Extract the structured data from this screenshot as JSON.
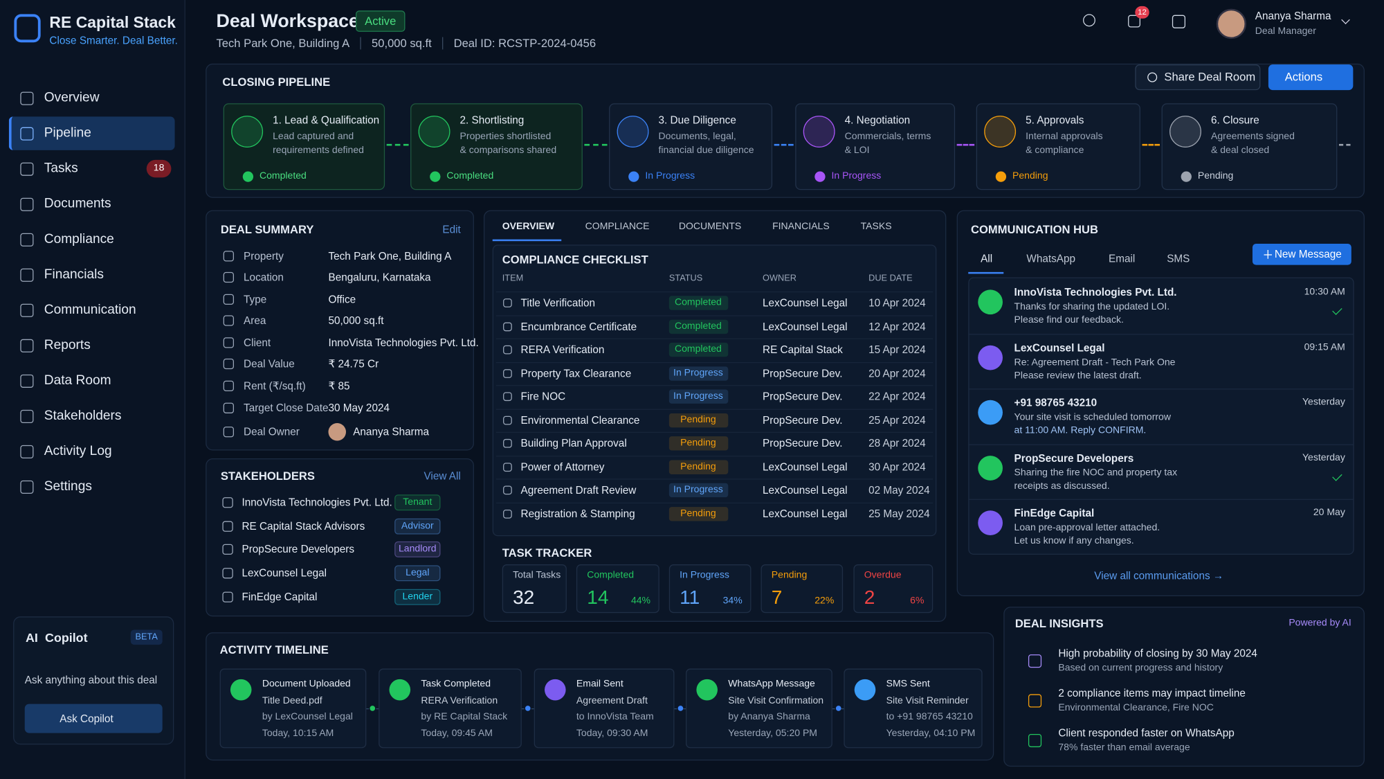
{
  "brand": {
    "name": "RE Capital Stack",
    "tagline": "Close Smarter. Deal Better."
  },
  "nav": [
    {
      "label": "Overview"
    },
    {
      "label": "Pipeline"
    },
    {
      "label": "Tasks",
      "badge": "18"
    },
    {
      "label": "Documents"
    },
    {
      "label": "Compliance"
    },
    {
      "label": "Financials"
    },
    {
      "label": "Communication"
    },
    {
      "label": "Reports"
    },
    {
      "label": "Data Room"
    },
    {
      "label": "Stakeholders"
    },
    {
      "label": "Activity Log"
    },
    {
      "label": "Settings"
    }
  ],
  "copilot": {
    "icon": "AI",
    "title": "Copilot",
    "badge": "BETA",
    "prompt": "Ask anything about this deal",
    "button": "Ask Copilot"
  },
  "header": {
    "title": "Deal Workspace",
    "status": "Active",
    "meta": [
      "Tech Park One, Building A",
      "50,000 sq.ft",
      "Deal ID: RCSTP-2024-0456"
    ],
    "notifications": "12",
    "user": "Ananya Sharma",
    "role": "Deal Manager",
    "share": "Share Deal Room",
    "actions": "Actions"
  },
  "pipeline": {
    "title": "CLOSING PIPELINE",
    "stages": [
      {
        "title": "1. Lead & Qualification",
        "desc": [
          "Lead captured and",
          "requirements defined"
        ],
        "status": "Completed",
        "color": "#22c55e"
      },
      {
        "title": "2. Shortlisting",
        "desc": [
          "Properties shortlisted",
          "& comparisons shared"
        ],
        "status": "Completed",
        "color": "#22c55e"
      },
      {
        "title": "3. Due Diligence",
        "desc": [
          "Documents, legal,",
          "financial due diligence"
        ],
        "status": "In Progress",
        "color": "#3b82f6"
      },
      {
        "title": "4. Negotiation",
        "desc": [
          "Commercials, terms",
          "& LOI"
        ],
        "status": "In Progress",
        "color": "#a855f7"
      },
      {
        "title": "5. Approvals",
        "desc": [
          "Internal approvals",
          "& compliance"
        ],
        "status": "Pending",
        "color": "#f59e0b"
      },
      {
        "title": "6. Closure",
        "desc": [
          "Agreements signed",
          "& deal closed"
        ],
        "status": "Pending",
        "color": "#9ca3af"
      }
    ]
  },
  "deal_summary": {
    "title": "DEAL SUMMARY",
    "edit": "Edit",
    "rows": [
      [
        "Property",
        "Tech Park One, Building A"
      ],
      [
        "Location",
        "Bengaluru, Karnataka"
      ],
      [
        "Type",
        "Office"
      ],
      [
        "Area",
        "50,000 sq.ft"
      ],
      [
        "Client",
        "InnoVista Technologies Pvt. Ltd."
      ],
      [
        "Deal Value",
        "₹ 24.75 Cr"
      ],
      [
        "Rent (₹/sq.ft)",
        "₹ 85"
      ],
      [
        "Target Close Date",
        "30 May 2024"
      ],
      [
        "Deal Owner",
        "Ananya Sharma"
      ]
    ]
  },
  "stakeholders": {
    "title": "STAKEHOLDERS",
    "view_all": "View All",
    "rows": [
      {
        "name": "InnoVista Technologies Pvt. Ltd.",
        "role": "Tenant",
        "color": "#22c55e"
      },
      {
        "name": "RE Capital Stack Advisors",
        "role": "Advisor",
        "color": "#60a5fa"
      },
      {
        "name": "PropSecure Developers",
        "role": "Landlord",
        "color": "#a78bfa"
      },
      {
        "name": "LexCounsel Legal",
        "role": "Legal",
        "color": "#60a5fa"
      },
      {
        "name": "FinEdge Capital",
        "role": "Lender",
        "color": "#22d3ee"
      }
    ]
  },
  "tabs": [
    "OVERVIEW",
    "COMPLIANCE",
    "DOCUMENTS",
    "FINANCIALS",
    "TASKS"
  ],
  "status_colors": {
    "Completed": "#22c55e",
    "In Progress": "#60a5fa",
    "Pending": "#f59e0b"
  },
  "compliance": {
    "title": "COMPLIANCE CHECKLIST",
    "columns": [
      "ITEM",
      "STATUS",
      "OWNER",
      "DUE DATE"
    ],
    "rows": [
      [
        "Title Verification",
        "Completed",
        "LexCounsel Legal",
        "10 Apr 2024"
      ],
      [
        "Encumbrance Certificate",
        "Completed",
        "LexCounsel Legal",
        "12 Apr 2024"
      ],
      [
        "RERA Verification",
        "Completed",
        "RE Capital Stack",
        "15 Apr 2024"
      ],
      [
        "Property Tax Clearance",
        "In Progress",
        "PropSecure Dev.",
        "20 Apr 2024"
      ],
      [
        "Fire NOC",
        "In Progress",
        "PropSecure Dev.",
        "22 Apr 2024"
      ],
      [
        "Environmental Clearance",
        "Pending",
        "PropSecure Dev.",
        "25 Apr 2024"
      ],
      [
        "Building Plan Approval",
        "Pending",
        "PropSecure Dev.",
        "28 Apr 2024"
      ],
      [
        "Power of Attorney",
        "Pending",
        "LexCounsel Legal",
        "30 Apr 2024"
      ],
      [
        "Agreement Draft Review",
        "In Progress",
        "LexCounsel Legal",
        "02 May 2024"
      ],
      [
        "Registration & Stamping",
        "Pending",
        "LexCounsel Legal",
        "25 May 2024"
      ]
    ]
  },
  "task_tracker": {
    "title": "TASK TRACKER",
    "cards": [
      {
        "label": "Total Tasks",
        "value": "32",
        "color": "#9aa6b8"
      },
      {
        "label": "Completed",
        "value": "14",
        "pct": "44%",
        "color": "#22c55e"
      },
      {
        "label": "In Progress",
        "value": "11",
        "pct": "34%",
        "color": "#60a5fa"
      },
      {
        "label": "Pending",
        "value": "7",
        "pct": "22%",
        "color": "#f59e0b"
      },
      {
        "label": "Overdue",
        "value": "2",
        "pct": "6%",
        "color": "#ef4444"
      }
    ]
  },
  "comms": {
    "title": "COMMUNICATION HUB",
    "tabs": [
      "All",
      "WhatsApp",
      "Email",
      "SMS"
    ],
    "new_message": "New Message",
    "messages": [
      {
        "from": "InnoVista Technologies Pvt. Ltd.",
        "lines": [
          "Thanks for sharing the updated LOI.",
          "Please find our feedback."
        ],
        "time": "10:30 AM",
        "color": "#22c55e",
        "read": true
      },
      {
        "from": "LexCounsel Legal",
        "lines": [
          "Re: Agreement Draft - Tech Park One",
          "Please review the latest draft."
        ],
        "time": "09:15 AM",
        "color": "#7c5cf0",
        "read": false
      },
      {
        "from": "+91 98765 43210",
        "lines": [
          "Your site visit is scheduled tomorrow",
          "at 11:00 AM. Reply CONFIRM."
        ],
        "time": "Yesterday",
        "color": "#3b9cf6",
        "read": false
      },
      {
        "from": "PropSecure Developers",
        "lines": [
          "Sharing the fire NOC and property tax",
          "receipts as discussed."
        ],
        "time": "Yesterday",
        "color": "#22c55e",
        "read": true
      },
      {
        "from": "FinEdge Capital",
        "lines": [
          "Loan pre-approval letter attached.",
          "Let us know if any changes."
        ],
        "time": "20 May",
        "color": "#7c5cf0",
        "read": false
      }
    ],
    "view_all": "View all communications →"
  },
  "insights": {
    "title": "DEAL INSIGHTS",
    "powered": "Powered by AI",
    "items": [
      {
        "title": "High probability of closing by 30 May 2024",
        "sub": "Based on current progress and history",
        "color": "#a78bfa"
      },
      {
        "title": "2 compliance items may impact timeline",
        "sub": "Environmental Clearance, Fire NOC",
        "color": "#f59e0b"
      },
      {
        "title": "Client responded faster on WhatsApp",
        "sub": "78% faster than email average",
        "color": "#22c55e"
      }
    ]
  },
  "timeline": {
    "title": "ACTIVITY TIMELINE",
    "events": [
      {
        "lines": [
          "Document Uploaded",
          "Title Deed.pdf",
          "by LexCounsel Legal",
          "Today, 10:15 AM"
        ],
        "color": "#22c55e"
      },
      {
        "lines": [
          "Task Completed",
          "RERA Verification",
          "by RE Capital Stack",
          "Today, 09:45 AM"
        ],
        "color": "#22c55e"
      },
      {
        "lines": [
          "Email Sent",
          "Agreement Draft",
          "to InnoVista Team",
          "Today, 09:30 AM"
        ],
        "color": "#7c5cf0"
      },
      {
        "lines": [
          "WhatsApp Message",
          "Site Visit Confirmation",
          "by Ananya Sharma",
          "Yesterday, 05:20 PM"
        ],
        "color": "#22c55e"
      },
      {
        "lines": [
          "SMS Sent",
          "Site Visit Reminder",
          "to +91 98765 43210",
          "Yesterday, 04:10 PM"
        ],
        "color": "#3b9cf6"
      }
    ]
  }
}
